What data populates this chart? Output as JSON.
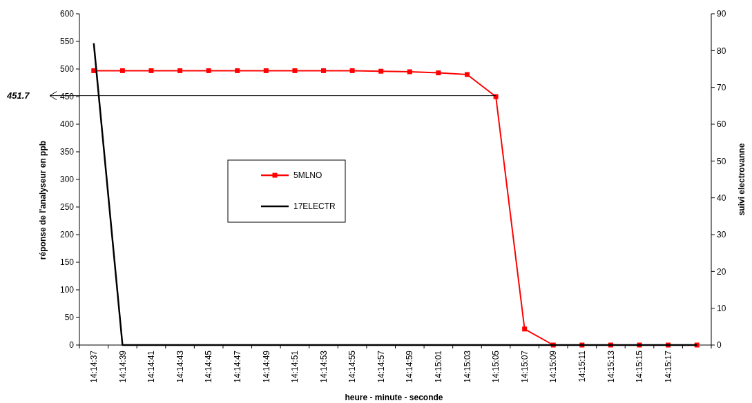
{
  "chart_data": {
    "type": "line",
    "xlabel": "heure - minute - seconde",
    "ylabel": "réponse de l'analyseur en ppb",
    "y2label": "suivi electrovanne",
    "categories": [
      "14:14:37",
      "14:14:39",
      "14:14:41",
      "14:14:43",
      "14:14:45",
      "14:14:47",
      "14:14:49",
      "14:14:51",
      "14:14:53",
      "14:14:55",
      "14:14:57",
      "14:14:59",
      "14:15:01",
      "14:15:03",
      "14:15:05",
      "14:15:07",
      "14:15:09",
      "14:15:11",
      "14:15:13",
      "14:15:15",
      "14:15:17",
      null
    ],
    "series": [
      {
        "name": "5MLNO",
        "color": "#ff0000",
        "marker": "square",
        "values": [
          497,
          497,
          497,
          497,
          497,
          497,
          497,
          497,
          497,
          497,
          496,
          495,
          493,
          490,
          450,
          29,
          0,
          0,
          0,
          0,
          0,
          0
        ]
      },
      {
        "name": "17ELECTR",
        "color": "#000000",
        "marker": "none",
        "axis": "y2",
        "values": [
          82,
          0,
          0,
          0,
          0,
          0,
          0,
          0,
          0,
          0,
          0,
          0,
          0,
          0,
          0,
          0,
          0,
          0,
          0,
          0,
          0,
          0
        ]
      }
    ],
    "ylim": [
      0,
      600
    ],
    "yticks": [
      0,
      50,
      100,
      150,
      200,
      250,
      300,
      350,
      400,
      450,
      500,
      550,
      600
    ],
    "y2lim": [
      0,
      90
    ],
    "y2ticks": [
      0,
      10,
      20,
      30,
      40,
      50,
      60,
      70,
      80,
      90
    ],
    "ref_lines": [
      {
        "axis": "y",
        "value": 451.7,
        "label": "451.7",
        "color": "#000000"
      }
    ],
    "grid": false,
    "legend": "center"
  }
}
